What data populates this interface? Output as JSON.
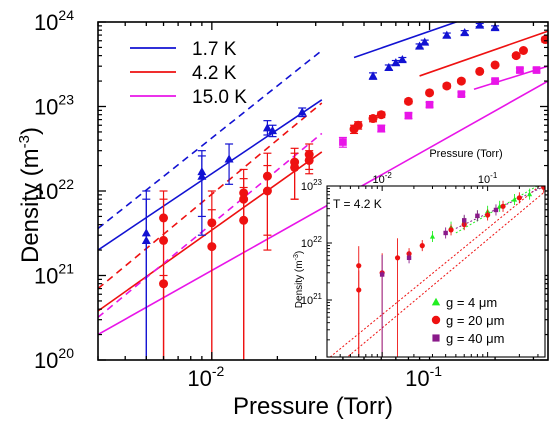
{
  "chart_data": [
    {
      "type": "scatter",
      "xlabel": "Pressure (Torr)",
      "ylabel_main": "Density (m",
      "ylabel_exp": "-3",
      "ylabel_close": ")",
      "x_scale": "log",
      "y_scale": "log",
      "xlim": [
        0.003,
        0.35
      ],
      "ylim": [
        1e+20,
        1e+24
      ],
      "x_ticks": [
        {
          "value": 0.01,
          "mantissa": "10",
          "exp": "-2"
        },
        {
          "value": 0.1,
          "mantissa": "10",
          "exp": "-1"
        }
      ],
      "y_ticks": [
        {
          "value": 1e+20,
          "mantissa": "10",
          "exp": "20"
        },
        {
          "value": 1e+21,
          "mantissa": "10",
          "exp": "21"
        },
        {
          "value": 1e+22,
          "mantissa": "10",
          "exp": "22"
        },
        {
          "value": 1e+23,
          "mantissa": "10",
          "exp": "23"
        },
        {
          "value": 1e+24,
          "mantissa": "10",
          "exp": "24"
        }
      ],
      "legend_position": "top-left",
      "series": [
        {
          "name": "1.7 K",
          "color": "#1212d2",
          "marker": "triangle",
          "points": [
            {
              "x": 0.005,
              "y": 3.2e+21,
              "lo": 1e+20,
              "hi": 1e+22
            },
            {
              "x": 0.005,
              "y": 2.6e+21,
              "lo": 1e+20,
              "hi": 8e+21
            },
            {
              "x": 0.009,
              "y": 1.7e+22,
              "lo": 3e+21,
              "hi": 3e+22
            },
            {
              "x": 0.009,
              "y": 1.5e+22,
              "lo": 5e+21,
              "hi": 2.6e+22
            },
            {
              "x": 0.012,
              "y": 2.4e+22,
              "lo": 1.2e+22,
              "hi": 3.6e+22
            },
            {
              "x": 0.018,
              "y": 5.6e+22,
              "lo": 4.6e+22,
              "hi": 6.8e+22
            },
            {
              "x": 0.019,
              "y": 5.2e+22,
              "lo": 4.4e+22,
              "hi": 6e+22
            },
            {
              "x": 0.026,
              "y": 8.6e+22,
              "lo": 7.6e+22,
              "hi": 9.6e+22
            },
            {
              "x": 0.055,
              "y": 2.3e+23,
              "lo": 2.1e+23,
              "hi": 2.5e+23
            },
            {
              "x": 0.065,
              "y": 2.9e+23,
              "lo": 2.7e+23,
              "hi": 3.1e+23
            },
            {
              "x": 0.07,
              "y": 3.3e+23,
              "lo": 3.1e+23,
              "hi": 3.5e+23
            },
            {
              "x": 0.075,
              "y": 3.6e+23,
              "lo": 3.4e+23,
              "hi": 3.8e+23
            },
            {
              "x": 0.09,
              "y": 5.2e+23,
              "lo": 4.9e+23,
              "hi": 5.5e+23
            },
            {
              "x": 0.095,
              "y": 5.8e+23,
              "lo": 5.5e+23,
              "hi": 6.1e+23
            },
            {
              "x": 0.12,
              "y": 7e+23,
              "lo": 6.6e+23,
              "hi": 7.4e+23
            },
            {
              "x": 0.145,
              "y": 7.5e+23,
              "lo": 7.1e+23,
              "hi": 7.9e+23
            },
            {
              "x": 0.17,
              "y": 9.2e+23,
              "lo": 8.8e+23,
              "hi": 9.6e+23
            },
            {
              "x": 0.2,
              "y": 8.6e+23,
              "lo": 8.2e+23,
              "hi": 9e+23
            }
          ],
          "fit_solid": [
            [
              0.003,
              2e+21
            ],
            [
              0.032,
              1.2e+23
            ]
          ],
          "fit_dashed": [
            [
              0.003,
              3.6e+21
            ],
            [
              0.032,
              4.6e+23
            ]
          ],
          "fit_highp": [
            [
              0.045,
              3.8e+23
            ],
            [
              0.14,
              1.05e+24
            ]
          ]
        },
        {
          "name": "4.2 K",
          "color": "#ee1111",
          "marker": "circle",
          "points": [
            {
              "x": 0.006,
              "y": 4.8e+21,
              "lo": 1e+20,
              "hi": 1e+22
            },
            {
              "x": 0.006,
              "y": 2.6e+21,
              "lo": 1e+20,
              "hi": 8e+21
            },
            {
              "x": 0.006,
              "y": 8e+20,
              "lo": 1e+20,
              "hi": 1e+21
            },
            {
              "x": 0.01,
              "y": 4.2e+21,
              "lo": 1e+20,
              "hi": 1e+22
            },
            {
              "x": 0.01,
              "y": 2.2e+21,
              "lo": 1e+20,
              "hi": 6e+21
            },
            {
              "x": 0.014,
              "y": 9.5e+21,
              "lo": 1e+20,
              "hi": 1.8e+22
            },
            {
              "x": 0.014,
              "y": 8e+21,
              "lo": 1e+20,
              "hi": 1.4e+22
            },
            {
              "x": 0.014,
              "y": 4.5e+21,
              "lo": 1e+20,
              "hi": 1.1e+22
            },
            {
              "x": 0.018,
              "y": 1.5e+22,
              "lo": 3e+21,
              "hi": 2.8e+22
            },
            {
              "x": 0.018,
              "y": 1e+22,
              "lo": 2e+21,
              "hi": 2e+22
            },
            {
              "x": 0.024,
              "y": 2.2e+22,
              "lo": 8e+21,
              "hi": 3.2e+22
            },
            {
              "x": 0.024,
              "y": 1.9e+22,
              "lo": 8e+21,
              "hi": 2.8e+22
            },
            {
              "x": 0.028,
              "y": 2.7e+22,
              "lo": 1.8e+22,
              "hi": 3.6e+22
            },
            {
              "x": 0.028,
              "y": 2.3e+22,
              "lo": 1.6e+22,
              "hi": 3e+22
            },
            {
              "x": 0.045,
              "y": 5.4e+22,
              "lo": 4.8e+22,
              "hi": 6e+22
            },
            {
              "x": 0.047,
              "y": 6e+22,
              "lo": 5.4e+22,
              "hi": 6.6e+22
            },
            {
              "x": 0.055,
              "y": 7.2e+22,
              "lo": 6.6e+22,
              "hi": 7.8e+22
            },
            {
              "x": 0.06,
              "y": 8e+22,
              "lo": 7.4e+22,
              "hi": 8.6e+22
            },
            {
              "x": 0.08,
              "y": 1.15e+23,
              "lo": 1.08e+23,
              "hi": 1.22e+23
            },
            {
              "x": 0.1,
              "y": 1.45e+23,
              "lo": 1.38e+23,
              "hi": 1.52e+23
            },
            {
              "x": 0.12,
              "y": 1.75e+23,
              "lo": 1.65e+23,
              "hi": 1.85e+23
            },
            {
              "x": 0.14,
              "y": 2e+23,
              "lo": 1.9e+23,
              "hi": 2.1e+23
            },
            {
              "x": 0.17,
              "y": 2.6e+23,
              "lo": 2.5e+23,
              "hi": 2.7e+23
            },
            {
              "x": 0.2,
              "y": 3.1e+23,
              "lo": 3e+23,
              "hi": 3.2e+23
            },
            {
              "x": 0.25,
              "y": 4e+23,
              "lo": 3.8e+23,
              "hi": 4.2e+23
            },
            {
              "x": 0.27,
              "y": 4.6e+23,
              "lo": 4.4e+23,
              "hi": 4.8e+23
            },
            {
              "x": 0.34,
              "y": 6.2e+23,
              "lo": 5.8e+23,
              "hi": 6.6e+23
            }
          ],
          "fit_solid": [
            [
              0.003,
              3.8e+20
            ],
            [
              0.032,
              2.9e+22
            ]
          ],
          "fit_dashed": [
            [
              0.003,
              7e+20
            ],
            [
              0.032,
              1.1e+23
            ]
          ],
          "fit_highp": [
            [
              0.09,
              2.3e+23
            ],
            [
              0.35,
              7.8e+23
            ]
          ]
        },
        {
          "name": "15.0 K",
          "color": "#e815e8",
          "marker": "square",
          "points": [
            {
              "x": 0.04,
              "y": 3.8e+22,
              "lo": 3.3e+22,
              "hi": 4.3e+22
            },
            {
              "x": 0.06,
              "y": 5.5e+22,
              "lo": 5e+22,
              "hi": 6e+22
            },
            {
              "x": 0.08,
              "y": 7.8e+22,
              "lo": 7.2e+22,
              "hi": 8.4e+22
            },
            {
              "x": 0.1,
              "y": 1.05e+23,
              "lo": 9.8e+22,
              "hi": 1.12e+23
            },
            {
              "x": 0.14,
              "y": 1.4e+23,
              "lo": 1.32e+23,
              "hi": 1.48e+23
            },
            {
              "x": 0.2,
              "y": 2e+23,
              "lo": 1.9e+23,
              "hi": 2.1e+23
            },
            {
              "x": 0.26,
              "y": 2.7e+23,
              "lo": 2.55e+23,
              "hi": 2.85e+23
            },
            {
              "x": 0.31,
              "y": 2.7e+23,
              "lo": 2.55e+23,
              "hi": 2.85e+23
            }
          ],
          "fit_solid": [
            [
              0.003,
              2e+20
            ],
            [
              0.35,
              2e+23
            ]
          ],
          "fit_dashed": [
            [
              0.003,
              3.2e+20
            ],
            [
              0.032,
              4.8e+22
            ]
          ],
          "fit_highp": [
            [
              0.16,
              1.6e+23
            ],
            [
              0.35,
              3e+23
            ]
          ]
        }
      ]
    },
    {
      "type": "scatter",
      "inset": true,
      "title": "T = 4.2 K",
      "xlabel": "Pressure (Torr)",
      "ylabel_main": "Density (m",
      "ylabel_exp": "-3",
      "ylabel_close": ")",
      "x_scale": "log",
      "y_scale": "log",
      "xlim": [
        0.003,
        0.35
      ],
      "ylim": [
        1e+20,
        1e+23
      ],
      "x_ticks": [
        {
          "value": 0.01,
          "mantissa": "10",
          "exp": "-2"
        },
        {
          "value": 0.1,
          "mantissa": "10",
          "exp": "-1"
        }
      ],
      "y_ticks": [
        {
          "value": 1e+21,
          "mantissa": "10",
          "exp": "21"
        },
        {
          "value": 1e+22,
          "mantissa": "10",
          "exp": "22"
        },
        {
          "value": 1e+23,
          "mantissa": "10",
          "exp": "23"
        }
      ],
      "legend_position": "bottom-right",
      "series": [
        {
          "name": "g =  4 μm",
          "color": "#22ee22",
          "marker": "triangle",
          "points": [
            {
              "x": 0.03,
              "y": 1.3e+22
            },
            {
              "x": 0.045,
              "y": 1.9e+22
            },
            {
              "x": 0.06,
              "y": 2.4e+22
            },
            {
              "x": 0.08,
              "y": 3e+22
            },
            {
              "x": 0.1,
              "y": 3.6e+22
            },
            {
              "x": 0.13,
              "y": 4.4e+22
            },
            {
              "x": 0.18,
              "y": 5.8e+22
            },
            {
              "x": 0.25,
              "y": 7.2e+22
            }
          ]
        },
        {
          "name": "g = 20 μm",
          "color": "#ee1111",
          "marker": "circle",
          "points": [
            {
              "x": 0.006,
              "y": 4e+21
            },
            {
              "x": 0.006,
              "y": 1.5e+21
            },
            {
              "x": 0.01,
              "y": 3e+21
            },
            {
              "x": 0.014,
              "y": 5.5e+21
            },
            {
              "x": 0.018,
              "y": 6.5e+21
            },
            {
              "x": 0.024,
              "y": 9e+21
            },
            {
              "x": 0.045,
              "y": 1.7e+22
            },
            {
              "x": 0.06,
              "y": 2.1e+22
            },
            {
              "x": 0.1,
              "y": 3.1e+22
            },
            {
              "x": 0.14,
              "y": 4.4e+22
            },
            {
              "x": 0.2,
              "y": 6.2e+22
            },
            {
              "x": 0.34,
              "y": 9.5e+22
            }
          ]
        },
        {
          "name": "g = 40 μm",
          "color": "#8a1a8a",
          "marker": "square",
          "points": [
            {
              "x": 0.01,
              "y": 2.8e+21
            },
            {
              "x": 0.018,
              "y": 5.5e+21
            },
            {
              "x": 0.04,
              "y": 1.5e+22
            },
            {
              "x": 0.06,
              "y": 2.5e+22
            },
            {
              "x": 0.08,
              "y": 3e+22
            },
            {
              "x": 0.12,
              "y": 3.8e+22
            }
          ]
        }
      ]
    }
  ]
}
